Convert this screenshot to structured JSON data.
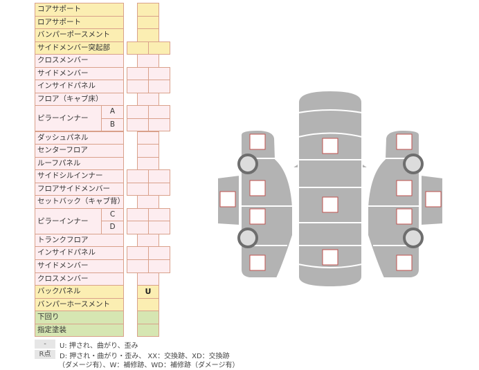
{
  "rows": [
    {
      "label": "コアサポート",
      "color": "y",
      "boxes": 1,
      "mark": ""
    },
    {
      "label": "ロアサポート",
      "color": "y",
      "boxes": 1,
      "mark": ""
    },
    {
      "label": "バンパーポースメント",
      "color": "y",
      "boxes": 1,
      "mark": ""
    },
    {
      "label": "サイドメンバー突起部",
      "color": "y",
      "boxes": 2,
      "mark": ""
    },
    {
      "label": "クロスメンバー",
      "color": "p",
      "boxes": 1,
      "mark": ""
    },
    {
      "label": "サイドメンバー",
      "color": "p",
      "boxes": 2,
      "mark": ""
    },
    {
      "label": "インサイドパネル",
      "color": "p",
      "boxes": 2,
      "mark": ""
    },
    {
      "label": "フロア（キャブ床）",
      "color": "p",
      "boxes": 1,
      "mark": ""
    },
    {
      "label": "ピラーインナー",
      "sub": "A",
      "color": "p",
      "boxes": 2,
      "mark": ""
    },
    {
      "label": "",
      "sub": "B",
      "color": "p",
      "boxes": 2,
      "mark": ""
    },
    {
      "label": "ダッシュパネル",
      "color": "p",
      "boxes": 1,
      "mark": ""
    },
    {
      "label": "センターフロア",
      "color": "p",
      "boxes": 1,
      "mark": ""
    },
    {
      "label": "ルーフパネル",
      "color": "p",
      "boxes": 1,
      "mark": ""
    },
    {
      "label": "サイドシルインナー",
      "color": "p",
      "boxes": 2,
      "mark": ""
    },
    {
      "label": "フロアサイドメンバー",
      "color": "p",
      "boxes": 2,
      "mark": ""
    },
    {
      "label": "セットバック（キャブ背）",
      "color": "p",
      "boxes": 1,
      "mark": ""
    },
    {
      "label": "ピラーインナー",
      "sub": "C",
      "color": "p",
      "boxes": 2,
      "mark": ""
    },
    {
      "label": "",
      "sub": "D",
      "color": "p",
      "boxes": 2,
      "mark": ""
    },
    {
      "label": "トランクフロア",
      "color": "p",
      "boxes": 1,
      "mark": ""
    },
    {
      "label": "インサイドパネル",
      "color": "p",
      "boxes": 2,
      "mark": ""
    },
    {
      "label": "サイドメンバー",
      "color": "p",
      "boxes": 2,
      "mark": ""
    },
    {
      "label": "クロスメンバー",
      "color": "p",
      "boxes": 1,
      "mark": ""
    },
    {
      "label": "バックパネル",
      "color": "y",
      "boxes": 1,
      "mark": "U"
    },
    {
      "label": "バンパーホースメント",
      "color": "y",
      "boxes": 1,
      "mark": ""
    },
    {
      "label": "下回り",
      "color": "g",
      "boxes": 1,
      "mark": ""
    },
    {
      "label": "指定塗装",
      "color": "g",
      "boxes": 1,
      "mark": ""
    }
  ],
  "legend": {
    "key1": "-",
    "text1": "U: 押され、曲がり、歪み",
    "key2": "R点",
    "text2": "D: 押され・曲がり・歪み、 XX：交換跡、XD：交換跡",
    "text3": "（ダメージ有）、W：補修跡、WD：補修跡（ダメージ有）"
  },
  "colors": {
    "yellow": "#fbeeb2",
    "pink": "#fdedf0",
    "green": "#d6e6b2",
    "border": "#d9a08a",
    "car": "#b3b3b3",
    "marker": "#c0504d"
  }
}
